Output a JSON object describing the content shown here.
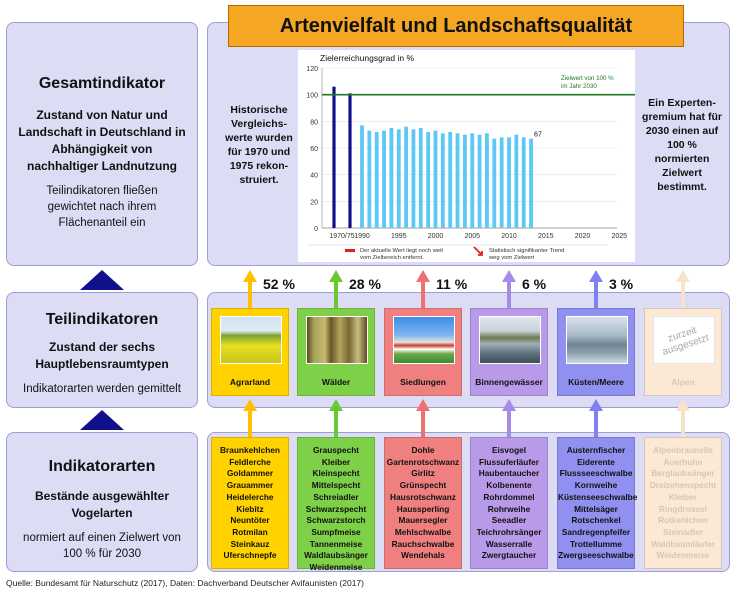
{
  "title": "Artenvielfalt und Landschaftsqualität",
  "left": {
    "gesamt": {
      "title": "Gesamtindikator",
      "subtitle": "Zustand von Natur und Landschaft in Deutschland in Abhängigkeit von nachhaltiger Landnutzung",
      "note": "Teilindikatoren fließen gewichtet nach ihrem Flächenanteil ein"
    },
    "teil": {
      "title": "Teilindikatoren",
      "subtitle": "Zustand der sechs Hauptlebensraumtypen",
      "note": "Indikatorarten werden gemittelt"
    },
    "indikator": {
      "title": "Indikatorarten",
      "subtitle": "Bestände ausgewählter Vogelarten",
      "note": "normiert auf einen Zielwert von 100 % für 2030"
    }
  },
  "side_left_text": "Historische Vergleichs-werte wurden für 1970 und 1975 rekon-struiert.",
  "side_right_text": "Ein Experten-gremium hat für 2030 einen auf 100 % normierten Zielwert bestimmt.",
  "chart_data": {
    "type": "bar",
    "title": "Zielerreichungsgrad in %",
    "ylim": [
      0,
      120
    ],
    "yticks": [
      0,
      20,
      40,
      60,
      80,
      100,
      120
    ],
    "xtick_labels": [
      "1970/75",
      "1990",
      "1995",
      "2000",
      "2005",
      "2010",
      "2015",
      "2020",
      "2025",
      "2030"
    ],
    "historic": [
      {
        "year": 1970,
        "value": 106
      },
      {
        "year": 1975,
        "value": 101
      }
    ],
    "years": [
      1990,
      1991,
      1992,
      1993,
      1994,
      1995,
      1996,
      1997,
      1998,
      1999,
      2000,
      2001,
      2002,
      2003,
      2004,
      2005,
      2006,
      2007,
      2008,
      2009,
      2010,
      2011,
      2012,
      2013
    ],
    "values": [
      77,
      73,
      72,
      73,
      75,
      74,
      76,
      74,
      75,
      72,
      73,
      71,
      72,
      71,
      70,
      71,
      70,
      71,
      67,
      68,
      68,
      70,
      68,
      67
    ],
    "last_label": "67",
    "target": {
      "year": 2030,
      "value": 100,
      "label_line1": "Zielwert von 100 %",
      "label_line2": "im Jahr 2030"
    },
    "legend": {
      "red_line1": "Der aktuelle Wert liegt noch weit",
      "red_line2": "vom Zielbereich entfernt.",
      "arrow_line1": "Statistisch signifikanter Trend",
      "arrow_line2": "weg vom Zielwert"
    },
    "colors": {
      "bar": "#5bc8f5",
      "historic": "#10108a",
      "target": "#1e7a1e",
      "red": "#e0201c"
    }
  },
  "habitats": [
    {
      "name": "Agrarland",
      "pct": "52 %",
      "color": "#ffd200",
      "arrow": "#ffc000",
      "image_text": "",
      "species": [
        "Braunkehlchen",
        "Feldlerche",
        "Goldammer",
        "Grauammer",
        "Heidelerche",
        "Kiebitz",
        "Neuntöter",
        "Rotmilan",
        "Steinkauz",
        "Uferschnepfe"
      ]
    },
    {
      "name": "Wälder",
      "pct": "28 %",
      "color": "#7ed048",
      "arrow": "#6cc832",
      "image_text": "",
      "species": [
        "Grauspecht",
        "Kleiber",
        "Kleinspecht",
        "Mittelspecht",
        "Schreiadler",
        "Schwarzspecht",
        "Schwarzstorch",
        "Sumpfmeise",
        "Tannenmeise",
        "Waldlaubsänger",
        "Weidenmeise"
      ]
    },
    {
      "name": "Siedlungen",
      "pct": "11 %",
      "color": "#f08080",
      "arrow": "#ee7070",
      "image_text": "",
      "species": [
        "Dohle",
        "Gartenrotschwanz",
        "Girlitz",
        "Grünspecht",
        "Hausrotschwanz",
        "Haussperling",
        "Mauersegler",
        "Mehlschwalbe",
        "Rauchschwalbe",
        "Wendehals"
      ]
    },
    {
      "name": "Binnengewässer",
      "pct": "6 %",
      "color": "#b89ae8",
      "arrow": "#a98ae8",
      "image_text": "",
      "species": [
        "Eisvogel",
        "Flussuferläufer",
        "Haubentaucher",
        "Kolbenente",
        "Rohrdommel",
        "Rohrweihe",
        "Seeadler",
        "Teichrohrsänger",
        "Wasserralle",
        "Zwergtaucher"
      ]
    },
    {
      "name": "Küsten/Meere",
      "pct": "3 %",
      "color": "#9090f0",
      "arrow": "#8080f0",
      "image_text": "",
      "species": [
        "Austernfischer",
        "Eiderente",
        "Flussseeschwalbe",
        "Kornweihe",
        "Küstenseeschwalbe",
        "Mittelsäger",
        "Rotschenkel",
        "Sandregenpfeifer",
        "Trottellumme",
        "Zwergseeschwalbe"
      ]
    },
    {
      "name": "Alpen",
      "pct": "",
      "color": "#fbe9d6",
      "arrow": "#f7e2cc",
      "image_text": "zurzeit ausgesetzt",
      "species": [
        "Alpenbraunelle",
        "Auerhuhn",
        "Berglaubsänger",
        "Dreizehenspecht",
        "Kleiber",
        "Ringdrossel",
        "Rotkehlchen",
        "Steinadler",
        "Waldbaumläufer",
        "Weidenmeise"
      ]
    }
  ],
  "source": "Quelle: Bundesamt für Naturschutz (2017), Daten: Dachverband Deutscher Avifaunisten (2017)"
}
